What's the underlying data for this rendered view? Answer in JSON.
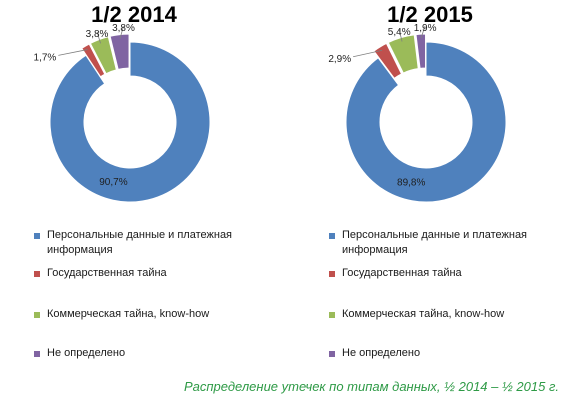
{
  "colors": [
    "#4f81bd",
    "#c0504d",
    "#9bbb59",
    "#8064a2"
  ],
  "legend_labels": [
    "Персональные данные и платежная информация",
    "Государственная тайна",
    "Коммерческая тайна, know-how",
    "Не определено"
  ],
  "caption": "Распределение утечек по типам данных, ½ 2014 – ½ 2015 г.",
  "chart_data": [
    {
      "type": "pie",
      "title": "1/2 2014",
      "categories": [
        "Персональные данные и платежная информация",
        "Государственная тайна",
        "Коммерческая тайна, know-how",
        "Не определено"
      ],
      "values": [
        90.7,
        1.7,
        3.8,
        3.8
      ],
      "data_labels": [
        "90,7%",
        "1,7%",
        "3,8%",
        "3,8%"
      ],
      "legend_position": "bottom"
    },
    {
      "type": "pie",
      "title": "1/2 2015",
      "categories": [
        "Персональные данные и платежная информация",
        "Государственная тайна",
        "Коммерческая тайна, know-how",
        "Не определено"
      ],
      "values": [
        89.8,
        2.9,
        5.4,
        1.9
      ],
      "data_labels": [
        "89,8%",
        "2,9%",
        "5,4%",
        "1,9%"
      ],
      "legend_position": "bottom"
    }
  ]
}
